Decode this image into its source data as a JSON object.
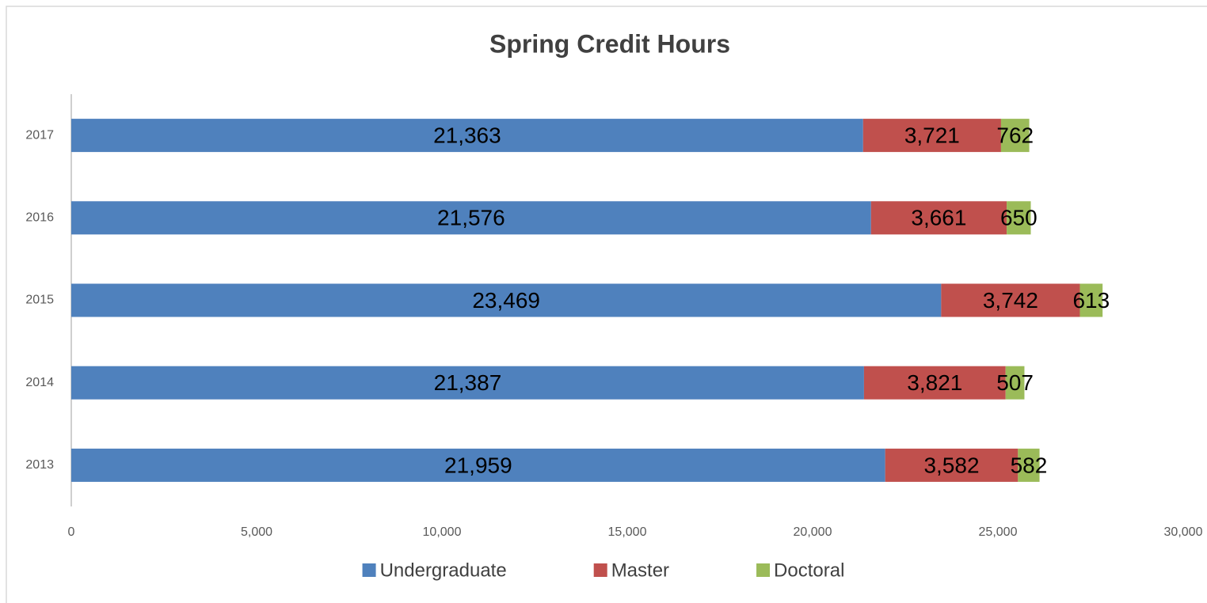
{
  "chart_data": {
    "type": "stacked-bar-horizontal",
    "title": "Spring Credit Hours",
    "categories": [
      "2013",
      "2014",
      "2015",
      "2016",
      "2017"
    ],
    "series": [
      {
        "name": "Undergraduate",
        "color": "#4f81bd",
        "values": [
          21959,
          21387,
          23469,
          21576,
          21363
        ],
        "value_labels": [
          "21,959",
          "21,387",
          "23,469",
          "21,576",
          "21,363"
        ]
      },
      {
        "name": "Master",
        "color": "#c0504d",
        "values": [
          3582,
          3821,
          3742,
          3661,
          3721
        ],
        "value_labels": [
          "3,582",
          "3,821",
          "3,742",
          "3,661",
          "3,721"
        ]
      },
      {
        "name": "Doctoral",
        "color": "#9bbb59",
        "values": [
          582,
          507,
          613,
          650,
          762
        ],
        "value_labels": [
          "582",
          "507",
          "613",
          "650",
          "762"
        ]
      }
    ],
    "xlim": [
      0,
      30000
    ],
    "xticks": [
      0,
      {
        "value": 5000,
        "label": "5,000"
      },
      {
        "value": 10000,
        "label": "10,000"
      },
      {
        "value": 15000,
        "label": "15,000"
      },
      {
        "value": 20000,
        "label": "20,000"
      },
      {
        "value": 25000,
        "label": "25,000"
      },
      {
        "value": 30000,
        "label": "30,000"
      }
    ],
    "legend": "bottom"
  }
}
